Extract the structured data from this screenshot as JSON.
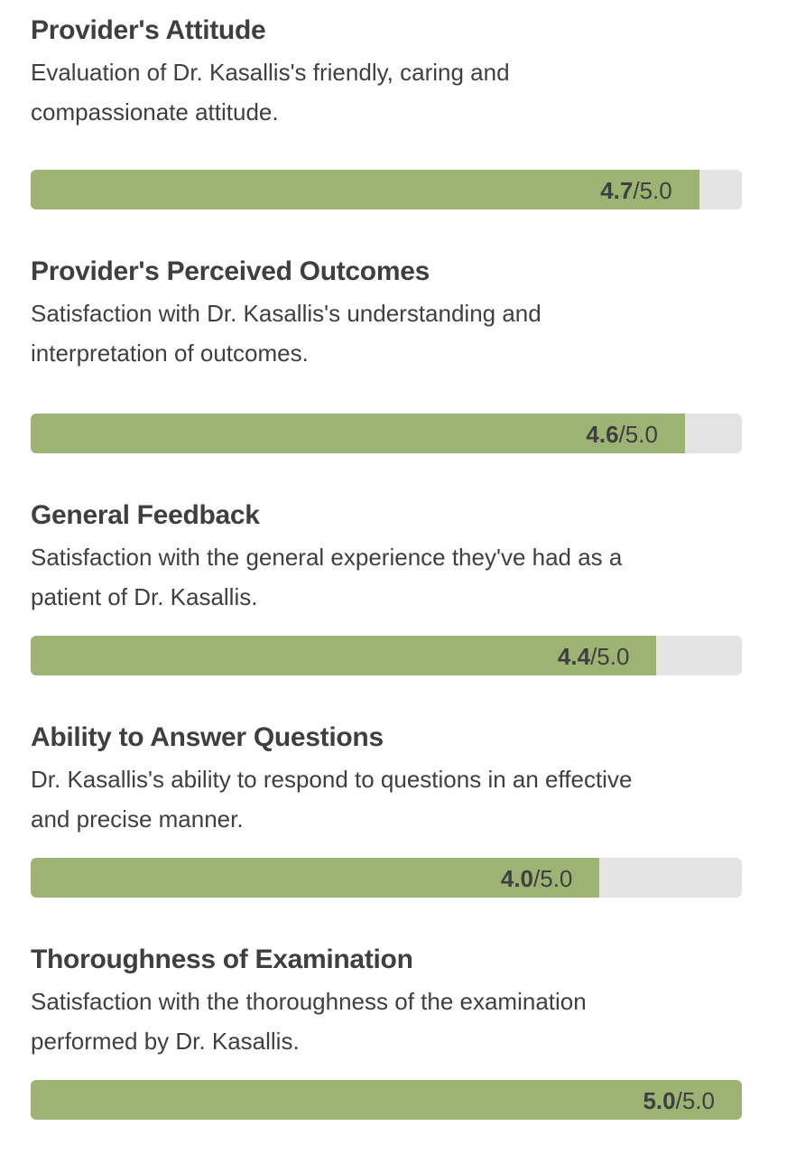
{
  "max_label": "/5.0",
  "max": 5.0,
  "colors": {
    "fill": "#9db374",
    "track": "#e4e4e4",
    "text": "#3f3f3f"
  },
  "ratings": [
    {
      "title": "Provider's Attitude",
      "description": "Evaluation of Dr. Kasallis's friendly, caring and compassionate attitude.",
      "score": 4.7,
      "score_label": "4.7"
    },
    {
      "title": "Provider's Perceived Outcomes",
      "description": "Satisfaction with Dr. Kasallis's understanding and interpretation of outcomes.",
      "score": 4.6,
      "score_label": "4.6"
    },
    {
      "title": "General Feedback",
      "description": "Satisfaction with the general experience they've had as a patient of Dr. Kasallis.",
      "score": 4.4,
      "score_label": "4.4"
    },
    {
      "title": "Ability to Answer Questions",
      "description": "Dr. Kasallis's ability to respond to questions in an effective and precise manner.",
      "score": 4.0,
      "score_label": "4.0"
    },
    {
      "title": "Thoroughness of Examination",
      "description": "Satisfaction with the thoroughness of the examination performed by Dr. Kasallis.",
      "score": 5.0,
      "score_label": "5.0"
    }
  ]
}
